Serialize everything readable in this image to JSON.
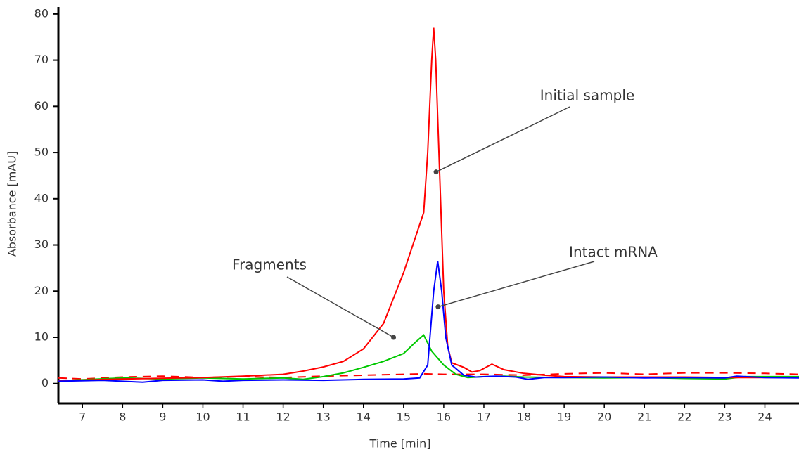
{
  "chart_data": {
    "type": "line",
    "xlabel": "Time [min]",
    "ylabel": "Absorbance [mAU]",
    "xlim": [
      6.4,
      24.85
    ],
    "ylim": [
      -4.3,
      81.5
    ],
    "xticks": [
      7,
      8,
      9,
      10,
      11,
      12,
      13,
      14,
      15,
      16,
      17,
      18,
      19,
      20,
      21,
      22,
      23,
      24
    ],
    "yticks": [
      0,
      10,
      20,
      30,
      40,
      50,
      60,
      70,
      80
    ],
    "grid": false,
    "series": [
      {
        "color": "#ff0000",
        "dashed": true,
        "x": [
          6.4,
          7,
          8,
          9,
          10,
          11,
          12,
          13,
          14,
          15,
          15.5,
          16,
          17,
          18,
          19,
          20,
          21,
          22,
          23,
          24,
          24.85
        ],
        "values": [
          1.2,
          1,
          1.4,
          1.6,
          1.3,
          1.5,
          1.3,
          1.6,
          1.8,
          2,
          2.1,
          2,
          2,
          1.8,
          2.1,
          2.3,
          2,
          2.3,
          2.3,
          2.2,
          2
        ]
      },
      {
        "color": "#00c800",
        "dashed": false,
        "x": [
          6.4,
          8,
          9,
          10,
          11,
          12,
          12.5,
          13,
          13.5,
          14,
          14.5,
          15,
          15.3,
          15.5,
          15.7,
          16,
          16.3,
          16.6,
          17,
          17.5,
          18,
          19,
          20,
          21,
          22,
          23,
          23.5,
          24.85
        ],
        "values": [
          0.6,
          1.2,
          1,
          1.2,
          1,
          1.2,
          0.9,
          1.5,
          2.3,
          3.5,
          4.8,
          6.5,
          9,
          10.5,
          7,
          4,
          2,
          1.3,
          1.5,
          1.6,
          1.4,
          1.3,
          1.2,
          1.3,
          1.1,
          1,
          1.5,
          1.5
        ]
      },
      {
        "color": "#ff0000",
        "dashed": false,
        "x": [
          6.4,
          8,
          10,
          11,
          12,
          12.5,
          13,
          13.5,
          14,
          14.5,
          15,
          15.5,
          15.6,
          15.7,
          15.75,
          15.8,
          15.9,
          16,
          16.1,
          16.2,
          16.5,
          16.7,
          16.9,
          17.2,
          17.5,
          18,
          18.5,
          19,
          20,
          21,
          22,
          23,
          24,
          24.85
        ],
        "values": [
          0.6,
          1,
          1.3,
          1.6,
          2,
          2.7,
          3.6,
          4.8,
          7.5,
          13,
          24,
          37,
          50,
          70,
          77,
          70,
          45,
          20,
          8,
          4.5,
          3.5,
          2.5,
          2.8,
          4.2,
          3,
          2.2,
          1.8,
          1.5,
          1.4,
          1.4,
          1.4,
          1.3,
          1.3,
          1.3
        ]
      },
      {
        "color": "#0000ff",
        "dashed": false,
        "x": [
          6.4,
          7.5,
          8.5,
          9,
          10,
          10.5,
          11,
          12,
          13,
          14,
          15,
          15.4,
          15.6,
          15.75,
          15.85,
          15.95,
          16.05,
          16.2,
          16.5,
          16.8,
          17.3,
          17.8,
          18.1,
          18.5,
          19,
          20,
          21,
          22,
          23,
          23.3,
          24,
          24.85
        ],
        "values": [
          0.5,
          0.7,
          0.3,
          0.7,
          0.8,
          0.5,
          0.7,
          0.8,
          0.7,
          0.9,
          1,
          1.2,
          4,
          20,
          26.5,
          20,
          10,
          4,
          1.8,
          1.4,
          1.6,
          1.4,
          0.9,
          1.3,
          1.3,
          1.4,
          1.2,
          1.3,
          1.2,
          1.6,
          1.3,
          1.2
        ]
      }
    ],
    "annotations": [
      {
        "text": "Initial sample",
        "x": 15.81,
        "y": 45.8
      },
      {
        "text": "Fragments",
        "x": 14.75,
        "y": 10
      },
      {
        "text": "Intact mRNA",
        "x": 15.86,
        "y": 16.6
      }
    ]
  }
}
